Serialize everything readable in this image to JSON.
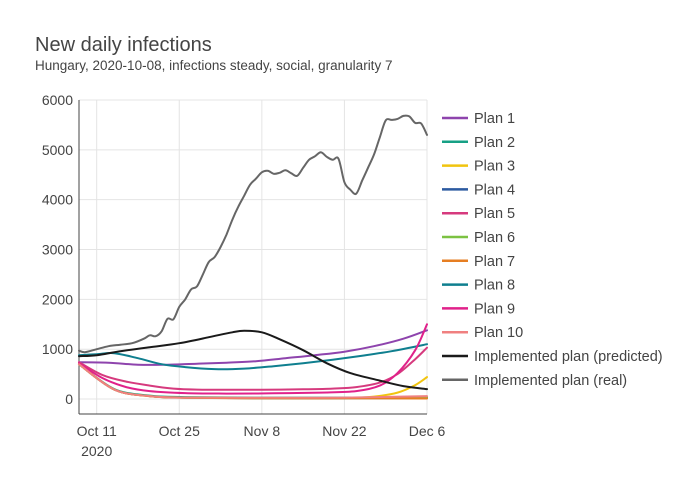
{
  "chart_data": {
    "type": "line",
    "title": "New daily infections",
    "subtitle": "Hungary, 2020-10-08, infections steady, social, granularity 7",
    "xlabel": "",
    "ylabel": "",
    "xlim": [
      "2020-10-08",
      "2020-12-06"
    ],
    "ylim": [
      -300,
      6000
    ],
    "x_ticks": [
      {
        "date": "2020-10-11",
        "label": "Oct 11",
        "sublabel": "2020"
      },
      {
        "date": "2020-10-25",
        "label": "Oct 25",
        "sublabel": ""
      },
      {
        "date": "2020-11-08",
        "label": "Nov 8",
        "sublabel": ""
      },
      {
        "date": "2020-11-22",
        "label": "Nov 22",
        "sublabel": ""
      },
      {
        "date": "2020-12-06",
        "label": "Dec 6",
        "sublabel": ""
      }
    ],
    "y_ticks": [
      0,
      1000,
      2000,
      3000,
      4000,
      5000,
      6000
    ],
    "grid": true,
    "legend_position": "right",
    "series": [
      {
        "name": "Plan 1",
        "color": "#8e44ad",
        "points": [
          [
            "2020-10-08",
            740
          ],
          [
            "2020-10-13",
            730
          ],
          [
            "2020-10-18",
            690
          ],
          [
            "2020-10-23",
            690
          ],
          [
            "2020-10-28",
            710
          ],
          [
            "2020-11-02",
            730
          ],
          [
            "2020-11-07",
            760
          ],
          [
            "2020-11-12",
            820
          ],
          [
            "2020-11-17",
            880
          ],
          [
            "2020-11-22",
            950
          ],
          [
            "2020-11-27",
            1060
          ],
          [
            "2020-12-02",
            1210
          ],
          [
            "2020-12-06",
            1380
          ]
        ]
      },
      {
        "name": "Plan 2",
        "color": "#16a085",
        "points": [
          [
            "2020-10-08",
            700
          ],
          [
            "2020-10-14",
            200
          ],
          [
            "2020-10-20",
            70
          ],
          [
            "2020-10-26",
            40
          ],
          [
            "2020-11-08",
            30
          ],
          [
            "2020-11-22",
            30
          ],
          [
            "2020-12-06",
            40
          ]
        ]
      },
      {
        "name": "Plan 3",
        "color": "#f1c40f",
        "points": [
          [
            "2020-10-08",
            700
          ],
          [
            "2020-10-14",
            190
          ],
          [
            "2020-10-20",
            60
          ],
          [
            "2020-10-26",
            30
          ],
          [
            "2020-11-08",
            20
          ],
          [
            "2020-11-22",
            20
          ],
          [
            "2020-11-27",
            50
          ],
          [
            "2020-12-01",
            130
          ],
          [
            "2020-12-04",
            280
          ],
          [
            "2020-12-06",
            440
          ]
        ]
      },
      {
        "name": "Plan 4",
        "color": "#2c5aa0",
        "points": [
          [
            "2020-10-08",
            700
          ],
          [
            "2020-10-14",
            190
          ],
          [
            "2020-10-20",
            60
          ],
          [
            "2020-10-26",
            30
          ],
          [
            "2020-11-08",
            15
          ],
          [
            "2020-11-22",
            15
          ],
          [
            "2020-12-06",
            20
          ]
        ]
      },
      {
        "name": "Plan 5",
        "color": "#d63a7e",
        "points": [
          [
            "2020-10-08",
            740
          ],
          [
            "2020-10-12",
            480
          ],
          [
            "2020-10-16",
            350
          ],
          [
            "2020-10-20",
            270
          ],
          [
            "2020-10-24",
            210
          ],
          [
            "2020-10-28",
            190
          ],
          [
            "2020-11-02",
            185
          ],
          [
            "2020-11-08",
            185
          ],
          [
            "2020-11-15",
            195
          ],
          [
            "2020-11-20",
            210
          ],
          [
            "2020-11-24",
            240
          ],
          [
            "2020-11-28",
            330
          ],
          [
            "2020-12-01",
            500
          ],
          [
            "2020-12-04",
            800
          ],
          [
            "2020-12-06",
            1030
          ]
        ]
      },
      {
        "name": "Plan 6",
        "color": "#7cc242",
        "points": [
          [
            "2020-10-08",
            700
          ],
          [
            "2020-10-14",
            190
          ],
          [
            "2020-10-20",
            60
          ],
          [
            "2020-10-26",
            30
          ],
          [
            "2020-11-08",
            20
          ],
          [
            "2020-11-22",
            20
          ],
          [
            "2020-12-06",
            25
          ]
        ]
      },
      {
        "name": "Plan 7",
        "color": "#e67e22",
        "points": [
          [
            "2020-10-08",
            700
          ],
          [
            "2020-10-14",
            190
          ],
          [
            "2020-10-20",
            55
          ],
          [
            "2020-10-26",
            25
          ],
          [
            "2020-11-08",
            15
          ],
          [
            "2020-11-22",
            15
          ],
          [
            "2020-12-06",
            10
          ]
        ]
      },
      {
        "name": "Plan 8",
        "color": "#0f7f8f",
        "points": [
          [
            "2020-10-08",
            880
          ],
          [
            "2020-10-11",
            900
          ],
          [
            "2020-10-14",
            920
          ],
          [
            "2020-10-18",
            820
          ],
          [
            "2020-10-22",
            700
          ],
          [
            "2020-10-26",
            640
          ],
          [
            "2020-10-31",
            600
          ],
          [
            "2020-11-05",
            610
          ],
          [
            "2020-11-10",
            660
          ],
          [
            "2020-11-15",
            720
          ],
          [
            "2020-11-20",
            790
          ],
          [
            "2020-11-25",
            870
          ],
          [
            "2020-11-30",
            960
          ],
          [
            "2020-12-06",
            1100
          ]
        ]
      },
      {
        "name": "Plan 9",
        "color": "#e0218a",
        "points": [
          [
            "2020-10-08",
            720
          ],
          [
            "2020-10-12",
            420
          ],
          [
            "2020-10-16",
            240
          ],
          [
            "2020-10-20",
            160
          ],
          [
            "2020-10-26",
            120
          ],
          [
            "2020-11-02",
            110
          ],
          [
            "2020-11-10",
            115
          ],
          [
            "2020-11-18",
            130
          ],
          [
            "2020-11-24",
            160
          ],
          [
            "2020-11-28",
            270
          ],
          [
            "2020-12-01",
            520
          ],
          [
            "2020-12-04",
            980
          ],
          [
            "2020-12-06",
            1500
          ]
        ]
      },
      {
        "name": "Plan 10",
        "color": "#f08080",
        "points": [
          [
            "2020-10-08",
            700
          ],
          [
            "2020-10-14",
            190
          ],
          [
            "2020-10-20",
            60
          ],
          [
            "2020-10-26",
            30
          ],
          [
            "2020-11-08",
            25
          ],
          [
            "2020-11-22",
            30
          ],
          [
            "2020-12-06",
            60
          ]
        ]
      },
      {
        "name": "Implemented plan (predicted)",
        "color": "#1a1a1a",
        "points": [
          [
            "2020-10-08",
            860
          ],
          [
            "2020-10-11",
            880
          ],
          [
            "2020-10-15",
            960
          ],
          [
            "2020-10-20",
            1040
          ],
          [
            "2020-10-25",
            1120
          ],
          [
            "2020-10-30",
            1240
          ],
          [
            "2020-11-03",
            1340
          ],
          [
            "2020-11-05",
            1370
          ],
          [
            "2020-11-08",
            1340
          ],
          [
            "2020-11-11",
            1200
          ],
          [
            "2020-11-15",
            980
          ],
          [
            "2020-11-19",
            720
          ],
          [
            "2020-11-23",
            520
          ],
          [
            "2020-11-28",
            370
          ],
          [
            "2020-12-02",
            260
          ],
          [
            "2020-12-06",
            200
          ]
        ]
      },
      {
        "name": "Implemented plan (real)",
        "color": "#666666",
        "points": [
          [
            "2020-10-08",
            970
          ],
          [
            "2020-10-09",
            940
          ],
          [
            "2020-10-11",
            1000
          ],
          [
            "2020-10-13",
            1060
          ],
          [
            "2020-10-15",
            1090
          ],
          [
            "2020-10-17",
            1120
          ],
          [
            "2020-10-19",
            1210
          ],
          [
            "2020-10-20",
            1280
          ],
          [
            "2020-10-21",
            1260
          ],
          [
            "2020-10-22",
            1360
          ],
          [
            "2020-10-23",
            1610
          ],
          [
            "2020-10-24",
            1600
          ],
          [
            "2020-10-25",
            1850
          ],
          [
            "2020-10-26",
            2000
          ],
          [
            "2020-10-27",
            2200
          ],
          [
            "2020-10-28",
            2260
          ],
          [
            "2020-10-29",
            2500
          ],
          [
            "2020-10-30",
            2750
          ],
          [
            "2020-10-31",
            2850
          ],
          [
            "2020-11-01",
            3050
          ],
          [
            "2020-11-02",
            3300
          ],
          [
            "2020-11-03",
            3600
          ],
          [
            "2020-11-04",
            3860
          ],
          [
            "2020-11-05",
            4080
          ],
          [
            "2020-11-06",
            4300
          ],
          [
            "2020-11-07",
            4420
          ],
          [
            "2020-11-08",
            4550
          ],
          [
            "2020-11-09",
            4580
          ],
          [
            "2020-11-10",
            4520
          ],
          [
            "2020-11-11",
            4540
          ],
          [
            "2020-11-12",
            4590
          ],
          [
            "2020-11-13",
            4530
          ],
          [
            "2020-11-14",
            4480
          ],
          [
            "2020-11-15",
            4640
          ],
          [
            "2020-11-16",
            4800
          ],
          [
            "2020-11-17",
            4870
          ],
          [
            "2020-11-18",
            4950
          ],
          [
            "2020-11-19",
            4860
          ],
          [
            "2020-11-20",
            4800
          ],
          [
            "2020-11-21",
            4820
          ],
          [
            "2020-11-22",
            4350
          ],
          [
            "2020-11-23",
            4200
          ],
          [
            "2020-11-24",
            4120
          ],
          [
            "2020-11-25",
            4380
          ],
          [
            "2020-11-26",
            4640
          ],
          [
            "2020-11-27",
            4900
          ],
          [
            "2020-11-28",
            5250
          ],
          [
            "2020-11-29",
            5590
          ],
          [
            "2020-11-30",
            5600
          ],
          [
            "2020-12-01",
            5620
          ],
          [
            "2020-12-02",
            5680
          ],
          [
            "2020-12-03",
            5670
          ],
          [
            "2020-12-04",
            5540
          ],
          [
            "2020-12-05",
            5530
          ],
          [
            "2020-12-06",
            5300
          ]
        ]
      }
    ]
  }
}
